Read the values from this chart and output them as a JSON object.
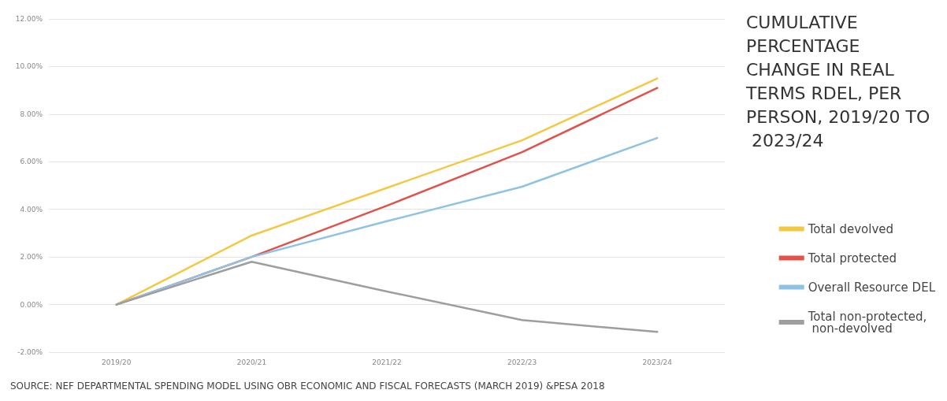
{
  "chart_data": {
    "type": "line",
    "title": "CUMULATIVE PERCENTAGE CHANGE IN REAL TERMS RDEL, PER PERSON, 2019/20 TO 2023/24",
    "categories": [
      "2019/20",
      "2020/21",
      "2021/22",
      "2022/23",
      "2023/24"
    ],
    "series": [
      {
        "name": "Total devolved",
        "color": "#f5c842",
        "values": [
          0,
          2.9,
          4.9,
          6.9,
          9.5
        ]
      },
      {
        "name": "Total protected",
        "color": "#e0524a",
        "values": [
          0,
          2.0,
          4.15,
          6.4,
          9.1
        ]
      },
      {
        "name": "Overall Resource DEL",
        "color": "#8fc3e6",
        "values": [
          0,
          2.0,
          3.5,
          4.95,
          7.0
        ]
      },
      {
        "name": "Total non-protected, non-devolved",
        "color": "#9e9e9e",
        "values": [
          0,
          1.8,
          0.55,
          -0.65,
          -1.15
        ]
      }
    ],
    "ylim": [
      -2,
      12
    ],
    "yticks": [
      {
        "value": -2,
        "label": "-2.00%"
      },
      {
        "value": 0,
        "label": "0.00%"
      },
      {
        "value": 2,
        "label": "2.00%"
      },
      {
        "value": 4,
        "label": "4.00%"
      },
      {
        "value": 6,
        "label": "6.00%"
      },
      {
        "value": 8,
        "label": "8.00%"
      },
      {
        "value": 10,
        "label": "10.00%"
      },
      {
        "value": 12,
        "label": "12.00%"
      }
    ],
    "grid": "y",
    "legend": "right",
    "marker": "none",
    "line_style": "solid",
    "annotations": [
      "SOURCE: NEF DEPARTMENTAL SPENDING MODEL USING OBR ECONOMIC AND FISCAL FORECASTS (MARCH 2019) &PESA 2018"
    ]
  }
}
